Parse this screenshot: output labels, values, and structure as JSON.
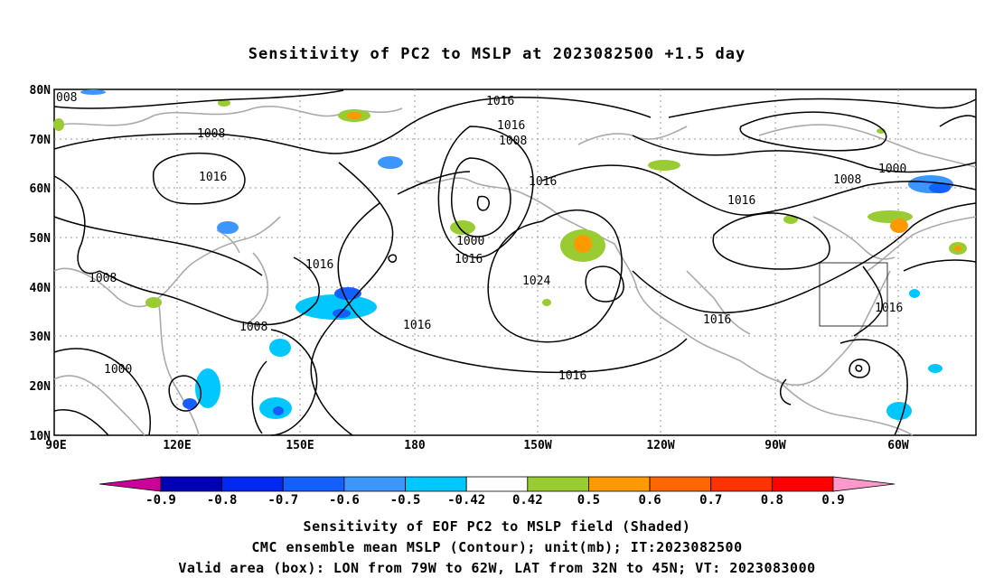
{
  "title": "Sensitivity of PC2 to MSLP at 2023082500 +1.5 day",
  "lat_labels": [
    "80N",
    "70N",
    "60N",
    "50N",
    "40N",
    "30N",
    "20N",
    "10N"
  ],
  "lon_labels": [
    "90E",
    "120E",
    "150E",
    "180",
    "150W",
    "120W",
    "90W",
    "60W"
  ],
  "contour_labels": [
    "008",
    "1016",
    "1016",
    "1008",
    "1008",
    "1016",
    "1016",
    "1000",
    "1008",
    "1016",
    "1016",
    "1008",
    "1016",
    "1016",
    "1024",
    "1008",
    "1000",
    "1016",
    "1016",
    "1016",
    "1000"
  ],
  "colorbar": {
    "labels": [
      "-0.9",
      "-0.8",
      "-0.7",
      "-0.6",
      "-0.5",
      "-0.42",
      "0.42",
      "0.5",
      "0.6",
      "0.7",
      "0.8",
      "0.9"
    ],
    "colors": [
      "#cc0099",
      "#0000b4",
      "#0028f0",
      "#1460ff",
      "#3c96ff",
      "#00c8ff",
      "#ffffff",
      "#99cc33",
      "#ff9900",
      "#ff6600",
      "#ff3300",
      "#ff0000",
      "#ff99cc"
    ]
  },
  "captions": [
    "Sensitivity of EOF PC2 to MSLP field (Shaded)",
    "CMC ensemble mean MSLP (Contour); unit(mb); IT:2023082500",
    "Valid area (box): LON from 79W to 62W, LAT from 32N to 45N; VT: 2023083000"
  ]
}
